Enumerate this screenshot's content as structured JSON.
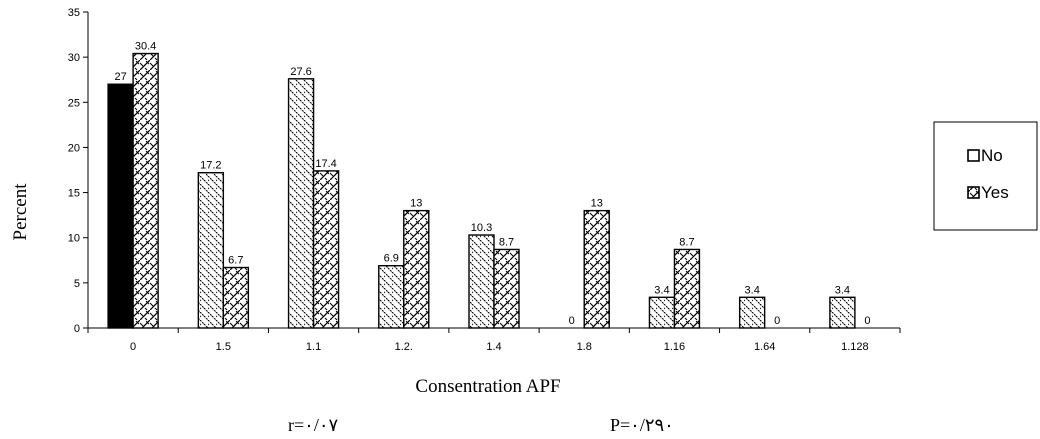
{
  "chart_data": {
    "type": "bar",
    "categories": [
      "0",
      "1.5",
      "1.1",
      "1.2.",
      "1.4",
      "1.8",
      "1.16",
      "1.64",
      "1.128"
    ],
    "series": [
      {
        "name": "No",
        "values": [
          27,
          17.2,
          27.6,
          6.9,
          10.3,
          0,
          3.4,
          3.4,
          3.4
        ]
      },
      {
        "name": "Yes",
        "values": [
          30.4,
          6.7,
          17.4,
          13,
          8.7,
          13,
          8.7,
          0,
          0
        ]
      }
    ],
    "data_labels": [
      [
        "27",
        "17.2",
        "27.6",
        "6.9",
        "10.3",
        "0",
        "3.4",
        "3.4",
        "3.4"
      ],
      [
        "30.4",
        "6.7",
        "17.4",
        "13",
        "8.7",
        "13",
        "8.7",
        "0",
        "0"
      ]
    ],
    "xlabel": "Consentration APF",
    "ylabel": "Percent",
    "ylim": [
      0,
      35
    ],
    "yticks": [
      "0",
      "5",
      "10",
      "15",
      "20",
      "25",
      "30",
      "35"
    ],
    "grid": false,
    "legend_position": "right",
    "first_no_bar_fill": "solid-black",
    "stats": {
      "r": "r=۰/۰۷",
      "p": "P=۰/۲۹۰"
    }
  }
}
